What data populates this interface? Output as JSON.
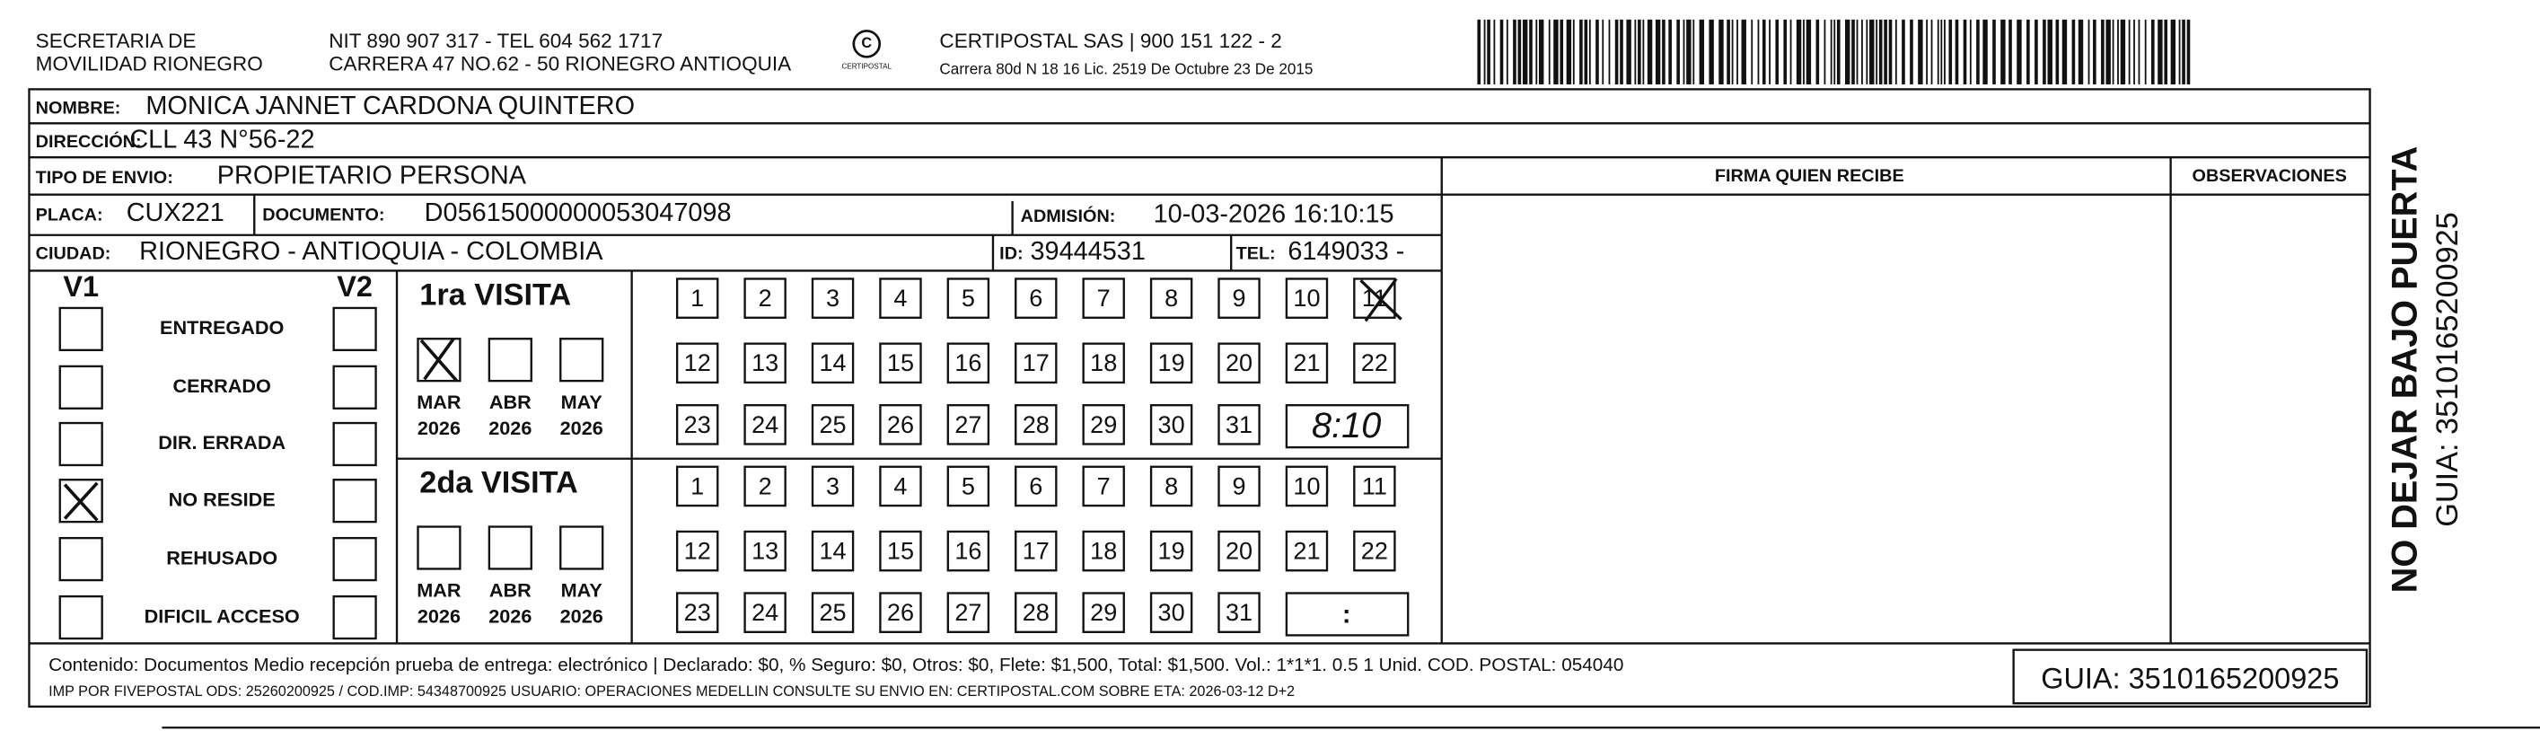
{
  "header": {
    "issuer": [
      "SECRETARIA DE",
      "MOVILIDAD RIONEGRO"
    ],
    "contact": [
      "NIT 890 907 317 - TEL 604 562 1717",
      "CARRERA 47 NO.62 - 50 RIONEGRO ANTIOQUIA"
    ],
    "logo": "CERTIPOSTAL",
    "courier": "CERTIPOSTAL SAS | 900 151 122 - 2",
    "license": "Carrera 80d N 18 16  Lic. 2519 De Octubre 23 De 2015"
  },
  "fields": {
    "name": {
      "label": "NOMBRE:",
      "value": "MONICA JANNET CARDONA QUINTERO"
    },
    "address": {
      "label": "DIRECCIÓN:",
      "value": "CLL 43 N°56-22"
    },
    "shipment_type": {
      "label": "TIPO DE ENVIO:",
      "value": "PROPIETARIO PERSONA"
    },
    "plate": {
      "label": "PLACA:",
      "value": "CUX221"
    },
    "document": {
      "label": "DOCUMENTO:",
      "value": "D05615000000053047098"
    },
    "admission": {
      "label": "ADMISIÓN:",
      "value": "10-03-2026 16:10:15"
    },
    "city": {
      "label": "CIUDAD:",
      "value": "RIONEGRO - ANTIOQUIA - COLOMBIA"
    },
    "id": {
      "label": "ID:",
      "value": "39444531"
    },
    "tel": {
      "label": "TEL:",
      "value": "6149033 -"
    }
  },
  "columns": {
    "signature": "FIRMA QUIEN RECIBE",
    "notes": "OBSERVACIONES"
  },
  "status": {
    "v1": "V1",
    "v2": "V2",
    "options": [
      "ENTREGADO",
      "CERRADO",
      "DIR. ERRADA",
      "NO RESIDE",
      "REHUSADO",
      "DIFICIL ACCESO"
    ]
  },
  "visits": [
    {
      "title": "1ra VISITA",
      "months": [
        "MAR",
        "ABR",
        "MAY"
      ],
      "years": [
        "2026",
        "2026",
        "2026"
      ],
      "days": [
        1,
        2,
        3,
        4,
        5,
        6,
        7,
        8,
        9,
        10,
        11,
        12,
        13,
        14,
        15,
        16,
        17,
        18,
        19,
        20,
        21,
        22,
        23,
        24,
        25,
        26,
        27,
        28,
        29,
        30,
        31
      ],
      "time": "8:10"
    },
    {
      "title": "2da VISITA",
      "months": [
        "MAR",
        "ABR",
        "MAY"
      ],
      "years": [
        "2026",
        "2026",
        "2026"
      ],
      "days": [
        1,
        2,
        3,
        4,
        5,
        6,
        7,
        8,
        9,
        10,
        11,
        12,
        13,
        14,
        15,
        16,
        17,
        18,
        19,
        20,
        21,
        22,
        23,
        24,
        25,
        26,
        27,
        28,
        29,
        30,
        31
      ],
      "time": ":"
    }
  ],
  "footer": {
    "content": "Contenido: Documentos Medio recepción prueba de entrega: electrónico | Declarado: $0, % Seguro: $0, Otros: $0, Flete: $1,500, Total: $1,500. Vol.: 1*1*1. 0.5  1 Unid. COD. POSTAL: 054040",
    "print": "IMP POR FIVEPOSTAL ODS: 25260200925 / COD.IMP: 54348700925 USUARIO: OPERACIONES MEDELLIN CONSULTE SU ENVIO EN: CERTIPOSTAL.COM SOBRE ETA: 2026-03-12 D+2",
    "guide": "GUIA: 3510165200925"
  },
  "side": {
    "warning": "NO DEJAR BAJO PUERTA",
    "guide": "GUIA: 3510165200925"
  }
}
